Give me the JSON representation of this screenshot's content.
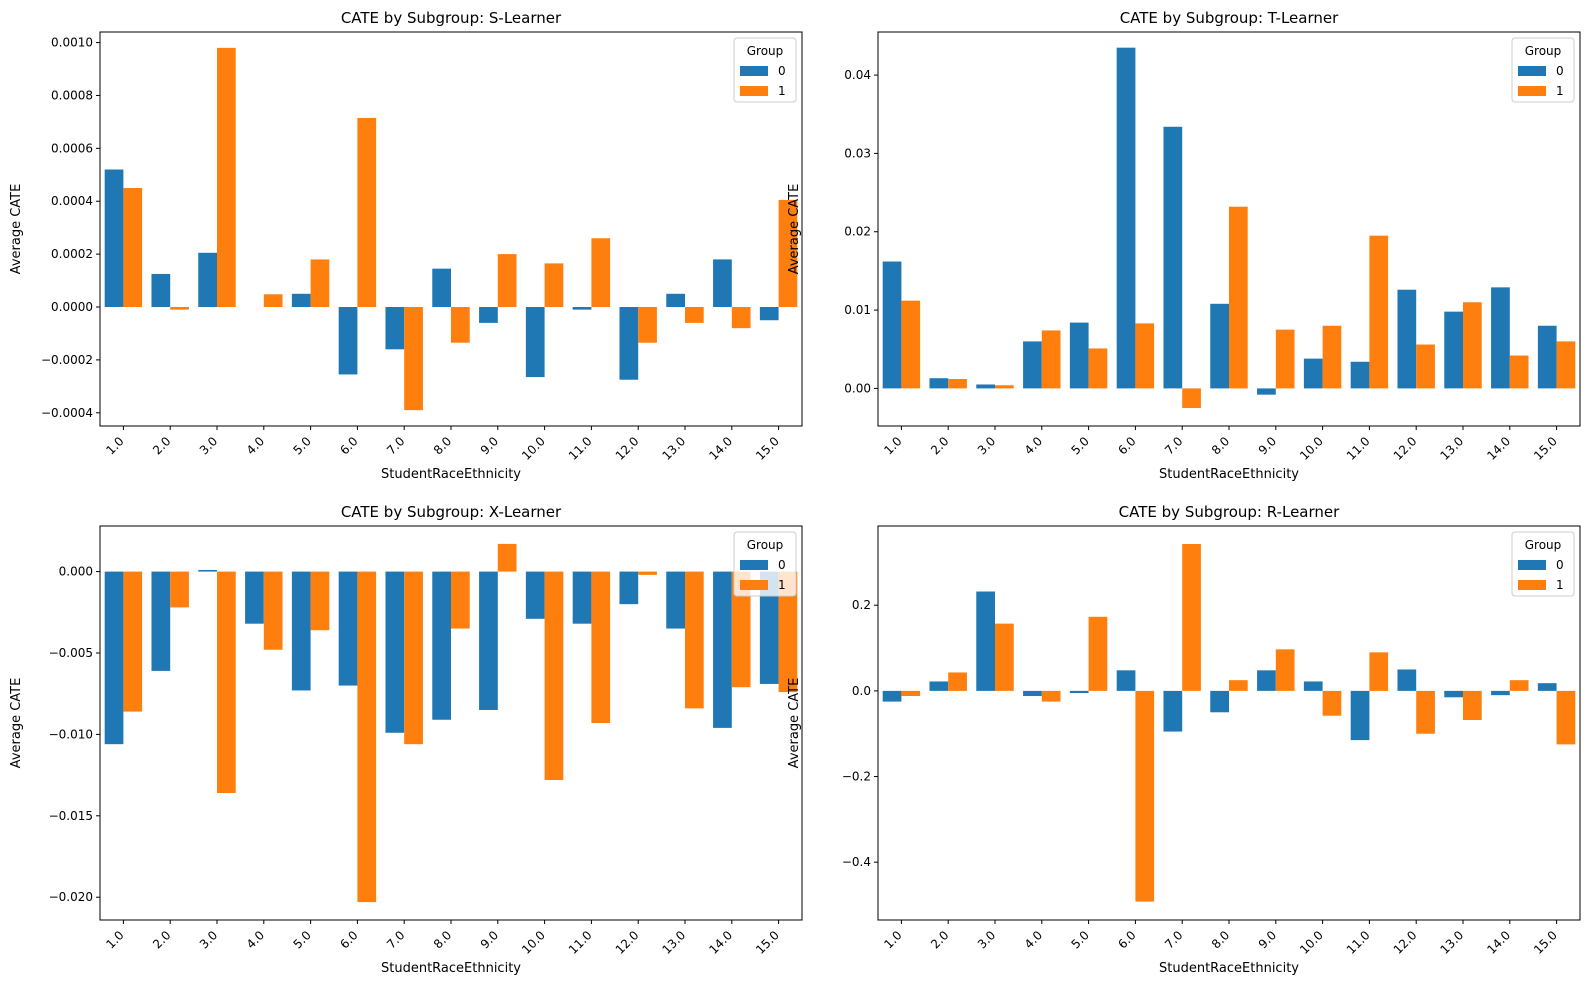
{
  "chart_data": [
    {
      "type": "bar",
      "title": "CATE by Subgroup: S-Learner",
      "xlabel": "StudentRaceEthnicity",
      "ylabel": "Average CATE",
      "categories": [
        "1.0",
        "2.0",
        "3.0",
        "4.0",
        "5.0",
        "6.0",
        "7.0",
        "8.0",
        "9.0",
        "10.0",
        "11.0",
        "12.0",
        "13.0",
        "14.0",
        "15.0"
      ],
      "ylim": [
        -0.00045,
        0.00104
      ],
      "yticks": [
        -0.0004,
        -0.0002,
        0.0,
        0.0002,
        0.0004,
        0.0006,
        0.0008,
        0.001
      ],
      "ytick_labels": [
        "−0.0004",
        "−0.0002",
        "0.0000",
        "0.0002",
        "0.0004",
        "0.0006",
        "0.0008",
        "0.0010"
      ],
      "legend": {
        "title": "Group",
        "placement": "top-right"
      },
      "grid": false,
      "series": [
        {
          "name": "0",
          "color": "#1f77b4",
          "values": [
            0.00052,
            0.000125,
            0.000205,
            0.0,
            5e-05,
            -0.000255,
            -0.00016,
            0.000145,
            -6e-05,
            -0.000265,
            -1e-05,
            -0.000275,
            5e-05,
            0.00018,
            -5e-05
          ]
        },
        {
          "name": "1",
          "color": "#ff7f0e",
          "values": [
            0.00045,
            -1e-05,
            0.00098,
            4.8e-05,
            0.00018,
            0.000715,
            -0.00039,
            -0.000135,
            0.0002,
            0.000165,
            0.00026,
            -0.000135,
            -6e-05,
            -8e-05,
            0.000405
          ]
        }
      ]
    },
    {
      "type": "bar",
      "title": "CATE by Subgroup: T-Learner",
      "xlabel": "StudentRaceEthnicity",
      "ylabel": "Average CATE",
      "categories": [
        "1.0",
        "2.0",
        "3.0",
        "4.0",
        "5.0",
        "6.0",
        "7.0",
        "8.0",
        "9.0",
        "10.0",
        "11.0",
        "12.0",
        "13.0",
        "14.0",
        "15.0"
      ],
      "ylim": [
        -0.0048,
        0.0455
      ],
      "yticks": [
        0.0,
        0.01,
        0.02,
        0.03,
        0.04
      ],
      "ytick_labels": [
        "0.00",
        "0.01",
        "0.02",
        "0.03",
        "0.04"
      ],
      "legend": {
        "title": "Group",
        "placement": "top-right"
      },
      "grid": false,
      "series": [
        {
          "name": "0",
          "color": "#1f77b4",
          "values": [
            0.0162,
            0.0013,
            0.0005,
            0.006,
            0.0084,
            0.0435,
            0.0334,
            0.0108,
            -0.0008,
            0.0038,
            0.0034,
            0.0126,
            0.0098,
            0.0129,
            0.008
          ]
        },
        {
          "name": "1",
          "color": "#ff7f0e",
          "values": [
            0.0112,
            0.0012,
            0.0004,
            0.0074,
            0.0051,
            0.0083,
            -0.0025,
            0.0232,
            0.0075,
            0.008,
            0.0195,
            0.0056,
            0.011,
            0.0042,
            0.006
          ]
        }
      ]
    },
    {
      "type": "bar",
      "title": "CATE by Subgroup: X-Learner",
      "xlabel": "StudentRaceEthnicity",
      "ylabel": "Average CATE",
      "categories": [
        "1.0",
        "2.0",
        "3.0",
        "4.0",
        "5.0",
        "6.0",
        "7.0",
        "8.0",
        "9.0",
        "10.0",
        "11.0",
        "12.0",
        "13.0",
        "14.0",
        "15.0"
      ],
      "ylim": [
        -0.0214,
        0.0028
      ],
      "yticks": [
        -0.02,
        -0.015,
        -0.01,
        -0.005,
        0.0
      ],
      "ytick_labels": [
        "−0.020",
        "−0.015",
        "−0.010",
        "−0.005",
        "0.000"
      ],
      "legend": {
        "title": "Group",
        "placement": "top-right"
      },
      "grid": false,
      "series": [
        {
          "name": "0",
          "color": "#1f77b4",
          "values": [
            -0.0106,
            -0.0061,
            0.0001,
            -0.0032,
            -0.0073,
            -0.007,
            -0.0099,
            -0.0091,
            -0.0085,
            -0.0029,
            -0.0032,
            -0.002,
            -0.0035,
            -0.0096,
            -0.0069
          ]
        },
        {
          "name": "1",
          "color": "#ff7f0e",
          "values": [
            -0.0086,
            -0.0022,
            -0.0136,
            -0.0048,
            -0.0036,
            -0.0203,
            -0.0106,
            -0.0035,
            0.0017,
            -0.0128,
            -0.0093,
            -0.0002,
            -0.0084,
            -0.0071,
            -0.0074
          ]
        }
      ]
    },
    {
      "type": "bar",
      "title": "CATE by Subgroup: R-Learner",
      "xlabel": "StudentRaceEthnicity",
      "ylabel": "Average CATE",
      "categories": [
        "1.0",
        "2.0",
        "3.0",
        "4.0",
        "5.0",
        "6.0",
        "7.0",
        "8.0",
        "9.0",
        "10.0",
        "11.0",
        "12.0",
        "13.0",
        "14.0",
        "15.0"
      ],
      "ylim": [
        -0.535,
        0.385
      ],
      "yticks": [
        -0.4,
        -0.2,
        0.0,
        0.2
      ],
      "ytick_labels": [
        "−0.4",
        "−0.2",
        "0.0",
        "0.2"
      ],
      "legend": {
        "title": "Group",
        "placement": "top-right"
      },
      "grid": false,
      "series": [
        {
          "name": "0",
          "color": "#1f77b4",
          "values": [
            -0.025,
            0.022,
            0.232,
            -0.012,
            -0.005,
            0.048,
            -0.095,
            -0.05,
            0.048,
            0.022,
            -0.115,
            0.05,
            -0.015,
            -0.01,
            0.018
          ]
        },
        {
          "name": "1",
          "color": "#ff7f0e",
          "values": [
            -0.012,
            0.043,
            0.157,
            -0.025,
            0.173,
            -0.492,
            0.343,
            0.025,
            0.097,
            -0.058,
            0.09,
            -0.1,
            -0.068,
            0.025,
            -0.125
          ]
        }
      ]
    }
  ]
}
